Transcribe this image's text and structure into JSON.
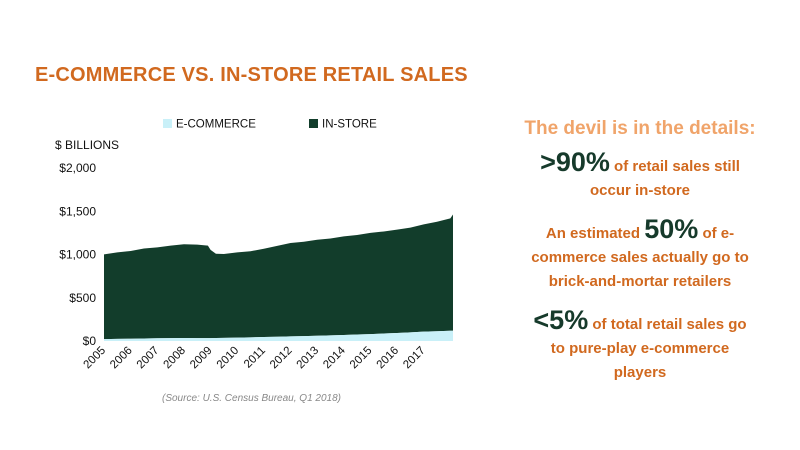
{
  "title": "E-COMMERCE VS. IN-STORE RETAIL SALES",
  "source": "(Source: U.S. Census Bureau, Q1 2018)",
  "colors": {
    "ecommerce": "#c9f0f8",
    "instore": "#123d2b",
    "accent": "#d1691f",
    "panel_head": "#f0a46a"
  },
  "panel": {
    "heading": "The devil is in the details:",
    "stat1": {
      "big": ">90%",
      "text1": "of retail sales still",
      "text2": "occur in-store"
    },
    "stat2": {
      "pre": "An estimated",
      "big": "50%",
      "text1": "of e-",
      "text2": "commerce sales actually go to",
      "text3": "brick-and-mortar retailers"
    },
    "stat3": {
      "big": "<5%",
      "text1": "of total retail sales go",
      "text2": "to pure-play e-commerce",
      "text3": "players"
    }
  },
  "chart_data": {
    "type": "area",
    "stacked": true,
    "ylabel": "$ BILLIONS",
    "ylim": [
      0,
      2000
    ],
    "yticks": [
      0,
      500,
      1000,
      1500,
      2000
    ],
    "ytick_labels": [
      "$0",
      "$500",
      "$1,000",
      "$1,500",
      "$2,000"
    ],
    "xlim": [
      2005,
      2018.1
    ],
    "xticks": [
      "2005",
      "2006",
      "2007",
      "2008",
      "2009",
      "2010",
      "2011",
      "2012",
      "2013",
      "2014",
      "2015",
      "2016",
      "2017"
    ],
    "legend": "top",
    "series": [
      {
        "name": "E-COMMERCE",
        "x": [
          2005,
          2006,
          2007,
          2008,
          2009,
          2010,
          2011,
          2012,
          2013,
          2014,
          2015,
          2016,
          2017,
          2018
        ],
        "values": [
          22,
          26,
          32,
          34,
          33,
          39,
          46,
          53,
          61,
          70,
          80,
          92,
          108,
          118
        ]
      },
      {
        "name": "IN-STORE",
        "x": [
          2005,
          2005.5,
          2006,
          2006.5,
          2007,
          2007.5,
          2008,
          2008.5,
          2008.9,
          2009,
          2009.2,
          2009.5,
          2010,
          2010.5,
          2011,
          2011.5,
          2012,
          2012.5,
          2013,
          2013.5,
          2014,
          2014.5,
          2015,
          2015.5,
          2016,
          2016.5,
          2017,
          2017.5,
          2018,
          2018.1
        ],
        "values": [
          980,
          1000,
          1015,
          1040,
          1050,
          1070,
          1085,
          1080,
          1070,
          1020,
          975,
          970,
          985,
          995,
          1020,
          1050,
          1080,
          1090,
          1110,
          1120,
          1140,
          1150,
          1170,
          1180,
          1195,
          1210,
          1240,
          1265,
          1300,
          1345
        ]
      }
    ]
  }
}
